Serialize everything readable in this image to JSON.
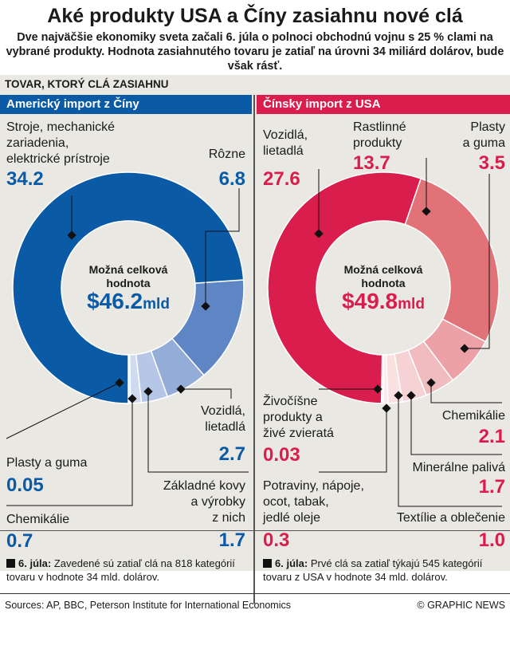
{
  "title": "Aké produkty USA a Číny zasiahnu nové clá",
  "subtitle": "Dve najväčšie ekonomiky sveta začali 6. júla o polnoci obchodnú vojnu s 25 % clami na vybrané produkty. Hodnota zasiahnutého tovaru je zatiaľ na úrovni 34 miliárd dolárov, bude však rásť.",
  "section_label": "TOVAR, KTORÝ CLÁ ZASIAHNU",
  "left_header": "Americký import z Číny",
  "right_header": "Čínsky import z USA",
  "center": {
    "label_line1": "Možná celková",
    "label_line2": "hodnota",
    "left_value": "$46.2",
    "right_value": "$49.8",
    "unit": "mld"
  },
  "notes": {
    "left_date": "6. júla:",
    "left_text": "Zavedené sú zatiaľ clá na 818 kategórií tovaru v hodnote 34 mld. dolárov.",
    "right_date": "6. júla:",
    "right_text": "Prvé clá sa zatiaľ týkajú 545 kategórií tovaru z USA v hodnote 34 mld. dolárov."
  },
  "sources": "Sources: AP, BBC, Peterson Institute for International Economics",
  "credit": "© GRAPHIC NEWS",
  "colors": {
    "blue": "#0b5aa6",
    "red": "#d91e4d"
  },
  "chart_data": [
    {
      "type": "pie",
      "title": "Americký import z Číny",
      "total": 46.2,
      "categories": [
        "Stroje, mechanické zariadenia, elektrické prístroje",
        "Rôzne",
        "Vozidlá, lietadlá",
        "Základné kovy a výrobky z nich",
        "Chemikálie",
        "Plasty a guma"
      ],
      "values": [
        34.2,
        6.8,
        2.7,
        1.7,
        0.7,
        0.05
      ],
      "value_labels": [
        "34.2",
        "6.8",
        "2.7",
        "1.7",
        "0.7",
        "0.05"
      ],
      "label_lines": [
        [
          "Stroje, mechanické",
          "zariadenia,",
          "elektrické prístroje"
        ],
        [
          "Rôzne"
        ],
        [
          "Vozidlá,",
          "lietadlá"
        ],
        [
          "Základné kovy",
          "a výrobky",
          "z nich"
        ],
        [
          "Chemikálie"
        ],
        [
          "Plasty a guma"
        ]
      ],
      "colors": [
        "#0b5aa6",
        "#5f86c4",
        "#94acd8",
        "#b5c6e6",
        "#cfdaee",
        "#e3eaf6"
      ]
    },
    {
      "type": "pie",
      "title": "Čínsky import z USA",
      "total": 49.8,
      "categories": [
        "Vozidlá, lietadlá",
        "Rastlinné produkty",
        "Plasty a guma",
        "Chemikálie",
        "Minerálne palivá",
        "Textílie a oblečenie",
        "Potraviny, nápoje, ocot, tabak, jedlé oleje",
        "Živočíšne produkty a živé zvieratá"
      ],
      "values": [
        27.6,
        13.7,
        3.5,
        2.1,
        1.7,
        1.0,
        0.3,
        0.03
      ],
      "value_labels": [
        "27.6",
        "13.7",
        "3.5",
        "2.1",
        "1.7",
        "1.0",
        "0.3",
        "0.03"
      ],
      "label_lines": [
        [
          "Vozidlá,",
          "lietadlá"
        ],
        [
          "Rastlinné",
          "produkty"
        ],
        [
          "Plasty",
          "a guma"
        ],
        [
          "Chemikálie"
        ],
        [
          "Minerálne palivá"
        ],
        [
          "Textílie a oblečenie"
        ],
        [
          "Potraviny, nápoje,",
          "ocot, tabak,",
          "jedlé oleje"
        ],
        [
          "Živočíšne",
          "produkty a",
          "živé zvieratá"
        ]
      ],
      "colors": [
        "#d91e4d",
        "#e07278",
        "#eba1a6",
        "#f1bcbf",
        "#f5d2d4",
        "#f9e1e2",
        "#fbeaeb",
        "#fdf3f3"
      ]
    }
  ]
}
